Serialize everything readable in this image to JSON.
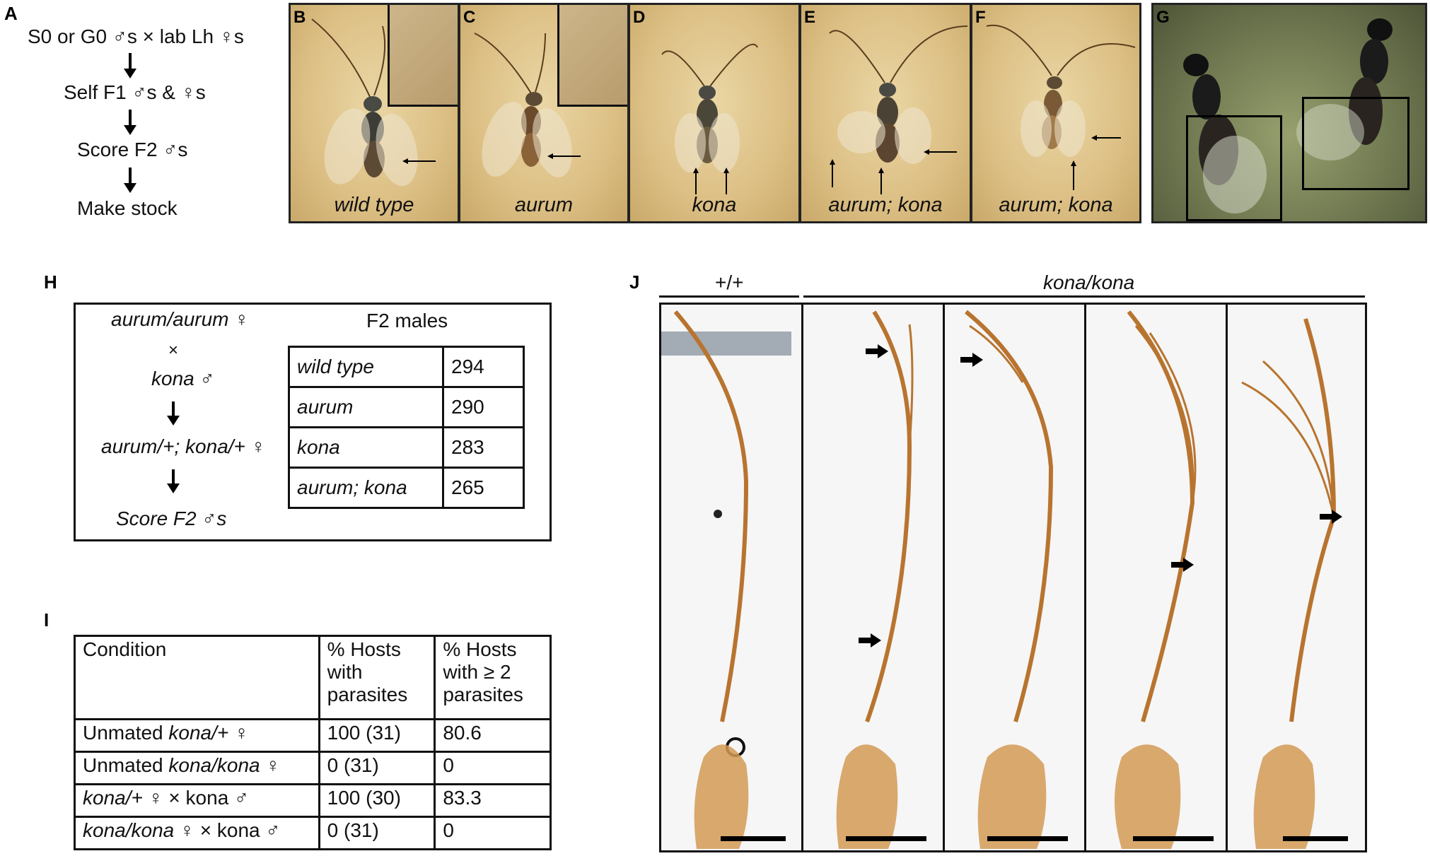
{
  "panel_labels": {
    "A": "A",
    "B": "B",
    "C": "C",
    "D": "D",
    "E": "E",
    "F": "F",
    "G": "G",
    "H": "H",
    "I": "I",
    "J": "J"
  },
  "panel_a": {
    "steps": [
      "S0 or G0 ♂s × lab Lh ♀s",
      "Self F1 ♂s & ♀s",
      "Score F2 ♂s",
      "Make stock"
    ]
  },
  "photos": [
    {
      "label": "B",
      "caption": "wild type"
    },
    {
      "label": "C",
      "caption": "aurum"
    },
    {
      "label": "D",
      "caption": "kona"
    },
    {
      "label": "E",
      "caption": "aurum; kona"
    },
    {
      "label": "F",
      "caption": "aurum; kona"
    }
  ],
  "panel_h": {
    "cross": [
      "aurum/aurum ♀",
      "×",
      "kona ♂",
      "aurum/+; kona/+ ♀",
      "Score F2 ♂s"
    ],
    "table_title": "F2 males",
    "rows": [
      {
        "genotype": "wild type",
        "count": "294"
      },
      {
        "genotype": "aurum",
        "count": "290"
      },
      {
        "genotype": "kona",
        "count": "283"
      },
      {
        "genotype": "aurum; kona",
        "count": "265"
      }
    ]
  },
  "panel_i": {
    "headers": [
      "Condition",
      "% Hosts with parasites",
      "% Hosts with ≥ 2 parasites"
    ],
    "rows": [
      {
        "cond_plain": "Unmated ",
        "cond_italic": "kona/+",
        "cond_tail": " ♀",
        "c1": "100 (31)",
        "c2": "80.6"
      },
      {
        "cond_plain": "Unmated ",
        "cond_italic": "kona/kona",
        "cond_tail": " ♀",
        "c1": "0 (31)",
        "c2": "0"
      },
      {
        "cond_plain": "",
        "cond_italic": "kona/+",
        "cond_tail": " ♀ × kona ♂",
        "c1": "100 (30)",
        "c2": "83.3"
      },
      {
        "cond_plain": "",
        "cond_italic": "kona/kona",
        "cond_tail": " ♀ × kona ♂",
        "c1": "0 (31)",
        "c2": "0"
      }
    ]
  },
  "panel_j": {
    "wt_label": "+/+",
    "mut_label": "kona/kona"
  },
  "colors": {
    "photo_bg": "#dcbf84",
    "antenna": "#b8742f",
    "panel_border": "#111111"
  }
}
